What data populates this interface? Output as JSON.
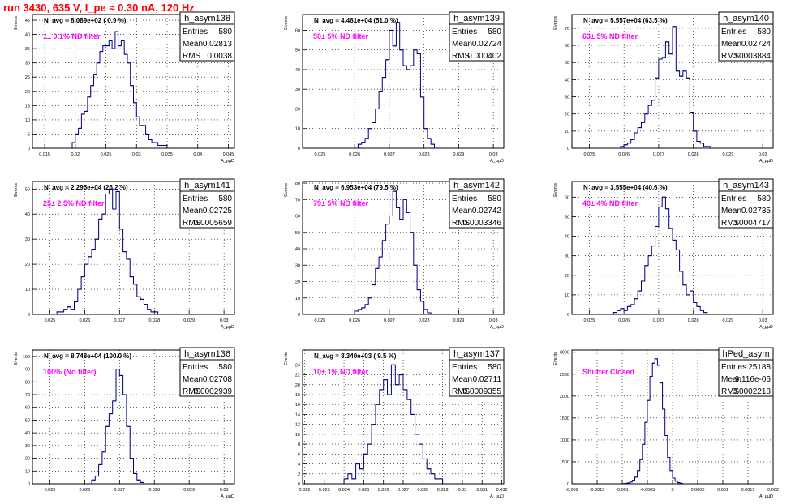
{
  "title": "run 3430,   635 V, I_pe ≈ 0.30 nA, 120 Hz",
  "colors": {
    "hist": "#000080",
    "annotation": "#ff00ff",
    "title": "#ff0000",
    "grid": "#000000"
  },
  "chart_data": [
    {
      "type": "bar",
      "name": "h_asym138",
      "xlabel": "A_μµD",
      "ylabel": "Events",
      "xlim": [
        0.013,
        0.046
      ],
      "ylim": [
        0,
        47
      ],
      "xticks": [
        0.015,
        0.02,
        0.025,
        0.03,
        0.035,
        0.04,
        0.045
      ],
      "xtick_labels": [
        "0.015",
        "0.02",
        "0.025",
        "0.03",
        "0.035",
        "0.04",
        "0.045"
      ],
      "yticks": [
        0,
        5,
        10,
        15,
        20,
        25,
        30,
        35,
        40,
        45
      ],
      "navg": "N_avg = 8.089e+02 ( 0.9 %)",
      "filter": "1± 0.1% ND filter",
      "stats": {
        "Entries": "580",
        "Mean": "0.02813",
        "RMS": "0.0038"
      },
      "bins": {
        "start": 0.0195,
        "width": 0.0005,
        "values": [
          2,
          5,
          7,
          12,
          13,
          18,
          22,
          26,
          30,
          34,
          36,
          36,
          38,
          35,
          41,
          36,
          38,
          33,
          30,
          22,
          16,
          11,
          8,
          8,
          5,
          3,
          2,
          2,
          1,
          1,
          1
        ]
      }
    },
    {
      "type": "bar",
      "name": "h_asym139",
      "xlabel": "A_μµD",
      "ylabel": "Events",
      "xlim": [
        0.0245,
        0.0303
      ],
      "ylim": [
        0,
        68
      ],
      "xticks": [
        0.025,
        0.026,
        0.027,
        0.028,
        0.029,
        0.03
      ],
      "xtick_labels": [
        "0.025",
        "0.026",
        "0.027",
        "0.028",
        "0.029",
        "0.03"
      ],
      "yticks": [
        0,
        10,
        20,
        30,
        40,
        50,
        60
      ],
      "navg": "N_avg = 4.461e+04 (51.0 %)",
      "filter": "50± 5% ND filter",
      "stats": {
        "Entries": "580",
        "Mean": "0.02724",
        "RMS": "0.000402"
      },
      "bins": {
        "start": 0.0261,
        "width": 0.0001,
        "values": [
          2,
          3,
          5,
          10,
          13,
          20,
          29,
          36,
          45,
          60,
          52,
          64,
          50,
          42,
          40,
          42,
          50,
          48,
          26,
          10,
          5,
          2
        ]
      }
    },
    {
      "type": "bar",
      "name": "h_asym140",
      "xlabel": "A_μµD",
      "ylabel": "Events",
      "xlim": [
        0.0245,
        0.0303
      ],
      "ylim": [
        0,
        78
      ],
      "xticks": [
        0.025,
        0.026,
        0.027,
        0.028,
        0.029,
        0.03
      ],
      "xtick_labels": [
        "0.025",
        "0.026",
        "0.027",
        "0.028",
        "0.029",
        "0.03"
      ],
      "yticks": [
        0,
        10,
        20,
        30,
        40,
        50,
        60,
        70
      ],
      "navg": "N_avg = 5.557e+04 (63.5 %)",
      "filter": "63± 5% ND filter",
      "stats": {
        "Entries": "580",
        "Mean": "0.02724",
        "RMS": "0.0003884"
      },
      "bins": {
        "start": 0.0259,
        "width": 0.0001,
        "values": [
          1,
          2,
          3,
          5,
          9,
          12,
          15,
          20,
          25,
          28,
          41,
          52,
          53,
          62,
          55,
          71,
          45,
          42,
          45,
          41,
          21,
          10,
          4,
          3,
          1,
          1
        ]
      }
    },
    {
      "type": "bar",
      "name": "h_asym141",
      "xlabel": "A_μµD",
      "ylabel": "Events",
      "xlim": [
        0.0245,
        0.0303
      ],
      "ylim": [
        0,
        53
      ],
      "xticks": [
        0.025,
        0.026,
        0.027,
        0.028,
        0.029,
        0.03
      ],
      "xtick_labels": [
        "0.025",
        "0.026",
        "0.027",
        "0.028",
        "0.029",
        "0.03"
      ],
      "yticks": [
        0,
        10,
        20,
        30,
        40,
        50
      ],
      "navg": "N_avg = 2.295e+04 (26.2 %)",
      "filter": "25± 2.5% ND filter",
      "stats": {
        "Entries": "580",
        "Mean": "0.02725",
        "RMS": "0.0005659"
      },
      "bins": {
        "start": 0.0252,
        "width": 0.0001,
        "values": [
          1,
          1,
          2,
          3,
          2,
          5,
          10,
          15,
          20,
          23,
          26,
          30,
          38,
          40,
          48,
          50,
          42,
          49,
          34,
          25,
          22,
          15,
          12,
          7,
          6,
          4,
          2,
          1,
          1
        ]
      }
    },
    {
      "type": "bar",
      "name": "h_asym142",
      "xlabel": "A_μµD",
      "ylabel": "Events",
      "xlim": [
        0.0245,
        0.0303
      ],
      "ylim": [
        0,
        81
      ],
      "xticks": [
        0.025,
        0.026,
        0.027,
        0.028,
        0.029,
        0.03
      ],
      "xtick_labels": [
        "0.025",
        "0.026",
        "0.027",
        "0.028",
        "0.029",
        "0.03"
      ],
      "yticks": [
        0,
        10,
        20,
        30,
        40,
        50,
        60,
        70,
        80
      ],
      "navg": "N_avg = 6.953e+04 (79.5 %)",
      "filter": "79± 5% ND filter",
      "stats": {
        "Entries": "580",
        "Mean": "0.02742",
        "RMS": "0.0003346"
      },
      "bins": {
        "start": 0.026,
        "width": 0.0001,
        "values": [
          2,
          3,
          4,
          6,
          10,
          18,
          28,
          35,
          45,
          55,
          60,
          75,
          65,
          58,
          70,
          62,
          50,
          30,
          15,
          8,
          3,
          1
        ]
      }
    },
    {
      "type": "bar",
      "name": "h_asym143",
      "xlabel": "A_μµD",
      "ylabel": "Events",
      "xlim": [
        0.0245,
        0.0303
      ],
      "ylim": [
        0,
        68
      ],
      "xticks": [
        0.025,
        0.026,
        0.027,
        0.028,
        0.029,
        0.03
      ],
      "xtick_labels": [
        "0.025",
        "0.026",
        "0.027",
        "0.028",
        "0.029",
        "0.03"
      ],
      "yticks": [
        0,
        10,
        20,
        30,
        40,
        50,
        60
      ],
      "navg": "N_avg = 3.555e+04 (40.6 %)",
      "filter": "40± 4% ND filter",
      "stats": {
        "Entries": "580",
        "Mean": "0.02735",
        "RMS": "0.0004717"
      },
      "bins": {
        "start": 0.0257,
        "width": 0.0001,
        "values": [
          1,
          2,
          3,
          2,
          4,
          5,
          8,
          12,
          17,
          25,
          30,
          35,
          45,
          55,
          60,
          54,
          44,
          38,
          33,
          22,
          15,
          10,
          12,
          6,
          4,
          2,
          1
        ]
      }
    },
    {
      "type": "bar",
      "name": "h_asym136",
      "xlabel": "A_μµD",
      "ylabel": "Events",
      "xlim": [
        0.0245,
        0.0303
      ],
      "ylim": [
        0,
        105
      ],
      "xticks": [
        0.025,
        0.026,
        0.027,
        0.028,
        0.029,
        0.03
      ],
      "xtick_labels": [
        "0.025",
        "0.026",
        "0.027",
        "0.028",
        "0.029",
        "0.03"
      ],
      "yticks": [
        0,
        10,
        20,
        30,
        40,
        50,
        60,
        70,
        80,
        90,
        100
      ],
      "navg": "N_avg = 8.748e+04 (100.0 %)",
      "filter": "100% (No filter)",
      "stats": {
        "Entries": "580",
        "Mean": "0.02708",
        "RMS": "0.0002939"
      },
      "bins": {
        "start": 0.0262,
        "width": 0.0001,
        "values": [
          3,
          6,
          15,
          25,
          45,
          55,
          65,
          90,
          85,
          70,
          45,
          20,
          8,
          3,
          1
        ]
      }
    },
    {
      "type": "bar",
      "name": "h_asym137",
      "xlabel": "A_μµD",
      "ylabel": "Events",
      "xlim": [
        0.0219,
        0.0321
      ],
      "ylim": [
        0,
        27
      ],
      "xticks": [
        0.022,
        0.023,
        0.024,
        0.025,
        0.026,
        0.027,
        0.028,
        0.029,
        0.03,
        0.031,
        0.032
      ],
      "xtick_labels": [
        "0.022",
        "0.023",
        "0.024",
        "0.025",
        "0.026",
        "0.027",
        "0.028",
        "0.029",
        "0.03",
        "0.031",
        "0.032"
      ],
      "yticks": [
        0,
        2,
        4,
        6,
        8,
        10,
        12,
        14,
        16,
        18,
        20,
        22,
        24
      ],
      "navg": "N_avg = 8.340e+03 ( 9.5 %)",
      "filter": "10± 1% ND filter",
      "stats": {
        "Entries": "580",
        "Mean": "0.02711",
        "RMS": "0.0009355"
      },
      "bins": {
        "start": 0.024,
        "width": 0.0002,
        "values": [
          1,
          2,
          1,
          4,
          3,
          6,
          8,
          12,
          16,
          19,
          21,
          18,
          24,
          20,
          22,
          19,
          17,
          14,
          10,
          8,
          5,
          3,
          2,
          1,
          1
        ]
      }
    },
    {
      "type": "bar",
      "name": "hPed_asym",
      "xlabel": "A_μµD",
      "ylabel": "Events",
      "xlim": [
        -0.002,
        0.002
      ],
      "ylim": [
        0,
        3050
      ],
      "xticks": [
        -0.002,
        -0.0015,
        -0.001,
        -0.0005,
        0,
        0.0005,
        0.001,
        0.0015,
        0.002
      ],
      "xtick_labels": [
        "-0.002",
        "-0.0015",
        "-0.001",
        "-0.0005",
        "0",
        "0.0005",
        "0.001",
        "0.0015",
        "0.002"
      ],
      "yticks": [
        0,
        500,
        1000,
        1500,
        2000,
        2500,
        3000
      ],
      "navg": "",
      "filter": "Shutter Closed",
      "stats": {
        "Entries": "25188",
        "Mean": "-9.116e-06",
        "RMS": "0.0002218"
      },
      "bins": {
        "start": -0.001,
        "width": 5e-05,
        "values": [
          5,
          10,
          20,
          40,
          80,
          150,
          300,
          550,
          900,
          1400,
          1900,
          2450,
          2750,
          2850,
          2700,
          2300,
          1700,
          1100,
          600,
          300,
          130,
          60,
          25,
          10
        ]
      }
    }
  ]
}
